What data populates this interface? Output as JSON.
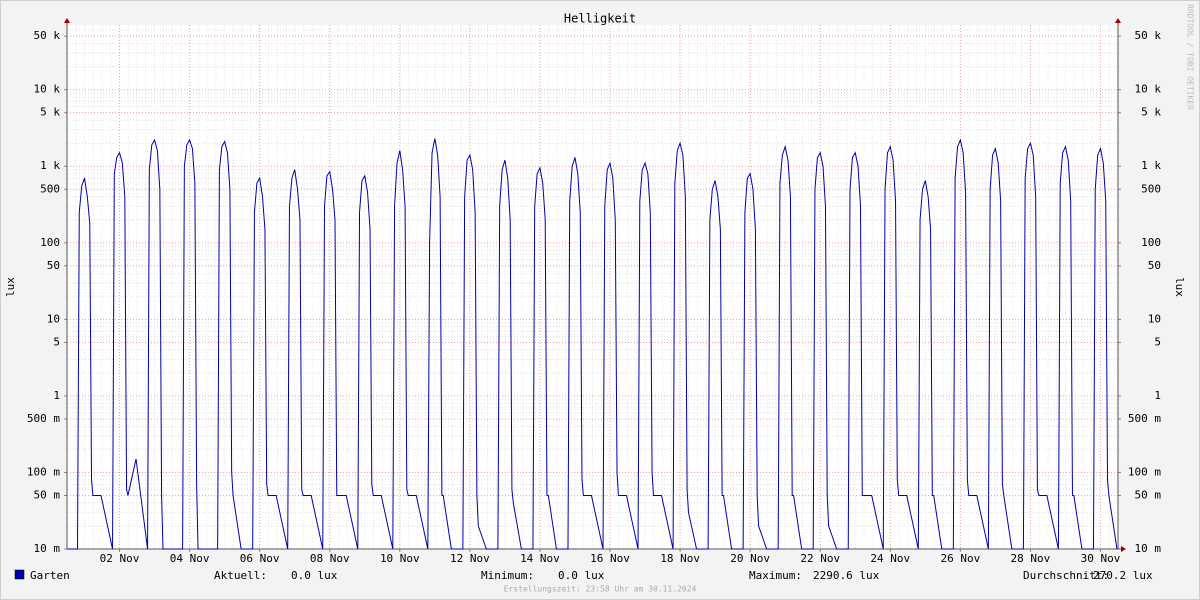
{
  "chart_data": {
    "type": "line",
    "title": "Helligkeit",
    "ylabel": "lux",
    "y2label": "lux",
    "watermark": "RRDTOOL / TOBI OETIKER",
    "footer": "Erstellungszeit: 23:58 Uhr am 30.11.2024",
    "log_scale": true,
    "grid": true,
    "xlim": [
      1,
      31
    ],
    "xticks": [
      {
        "value": 2.5,
        "label": "02 Nov"
      },
      {
        "value": 4.5,
        "label": "04 Nov"
      },
      {
        "value": 6.5,
        "label": "06 Nov"
      },
      {
        "value": 8.5,
        "label": "08 Nov"
      },
      {
        "value": 10.5,
        "label": "10 Nov"
      },
      {
        "value": 12.5,
        "label": "12 Nov"
      },
      {
        "value": 14.5,
        "label": "14 Nov"
      },
      {
        "value": 16.5,
        "label": "16 Nov"
      },
      {
        "value": 18.5,
        "label": "18 Nov"
      },
      {
        "value": 20.5,
        "label": "20 Nov"
      },
      {
        "value": 22.5,
        "label": "22 Nov"
      },
      {
        "value": 24.5,
        "label": "24 Nov"
      },
      {
        "value": 26.5,
        "label": "26 Nov"
      },
      {
        "value": 28.5,
        "label": "28 Nov"
      },
      {
        "value": 30.5,
        "label": "30 Nov"
      }
    ],
    "ylim": [
      0.01,
      70000
    ],
    "yticks": [
      {
        "value": 0.01,
        "label": "10 m"
      },
      {
        "value": 0.05,
        "label": "50 m"
      },
      {
        "value": 0.1,
        "label": "100 m"
      },
      {
        "value": 0.5,
        "label": "500 m"
      },
      1,
      5,
      10,
      50,
      100,
      500,
      {
        "value": 1000,
        "label": "1 k"
      },
      {
        "value": 5000,
        "label": "5 k"
      },
      {
        "value": 10000,
        "label": "10 k"
      },
      {
        "value": 50000,
        "label": "50 k"
      }
    ],
    "x": [
      1,
      1.3,
      1.35,
      1.42,
      1.5,
      1.58,
      1.65,
      1.7,
      1.74,
      1.97,
      2.3,
      2.35,
      2.42,
      2.5,
      2.58,
      2.65,
      2.7,
      2.74,
      2.97,
      3.3,
      3.35,
      3.42,
      3.5,
      3.58,
      3.65,
      3.7,
      3.74,
      3.97,
      4.3,
      4.35,
      4.42,
      4.5,
      4.58,
      4.65,
      4.7,
      4.74,
      4.97,
      5.3,
      5.35,
      5.42,
      5.5,
      5.58,
      5.65,
      5.7,
      5.74,
      5.97,
      6.3,
      6.35,
      6.42,
      6.5,
      6.58,
      6.65,
      6.7,
      6.74,
      6.97,
      7.3,
      7.35,
      7.42,
      7.5,
      7.58,
      7.65,
      7.7,
      7.74,
      7.97,
      8.3,
      8.35,
      8.42,
      8.5,
      8.58,
      8.65,
      8.7,
      8.74,
      8.97,
      9.3,
      9.35,
      9.42,
      9.5,
      9.58,
      9.65,
      9.7,
      9.74,
      9.97,
      10.3,
      10.35,
      10.42,
      10.5,
      10.58,
      10.65,
      10.7,
      10.74,
      10.97,
      11.3,
      11.35,
      11.42,
      11.5,
      11.58,
      11.65,
      11.7,
      11.74,
      11.97,
      12.3,
      12.35,
      12.42,
      12.5,
      12.58,
      12.65,
      12.7,
      12.74,
      12.97,
      13.3,
      13.35,
      13.42,
      13.5,
      13.58,
      13.65,
      13.7,
      13.74,
      13.97,
      14.3,
      14.35,
      14.42,
      14.5,
      14.58,
      14.65,
      14.7,
      14.74,
      14.97,
      15.3,
      15.35,
      15.42,
      15.5,
      15.58,
      15.65,
      15.7,
      15.74,
      15.97,
      16.3,
      16.35,
      16.42,
      16.5,
      16.58,
      16.65,
      16.7,
      16.74,
      16.97,
      17.3,
      17.35,
      17.42,
      17.5,
      17.58,
      17.65,
      17.7,
      17.74,
      17.97,
      18.3,
      18.35,
      18.42,
      18.5,
      18.58,
      18.65,
      18.7,
      18.74,
      18.97,
      19.3,
      19.35,
      19.42,
      19.5,
      19.58,
      19.65,
      19.7,
      19.74,
      19.97,
      20.3,
      20.35,
      20.42,
      20.5,
      20.58,
      20.65,
      20.7,
      20.74,
      20.97,
      21.3,
      21.35,
      21.42,
      21.5,
      21.58,
      21.65,
      21.7,
      21.74,
      21.97,
      22.3,
      22.35,
      22.42,
      22.5,
      22.58,
      22.65,
      22.7,
      22.74,
      22.97,
      23.3,
      23.35,
      23.42,
      23.5,
      23.58,
      23.65,
      23.7,
      23.74,
      23.97,
      24.3,
      24.35,
      24.42,
      24.5,
      24.58,
      24.65,
      24.7,
      24.74,
      24.97,
      25.3,
      25.35,
      25.42,
      25.5,
      25.58,
      25.65,
      25.7,
      25.74,
      25.97,
      26.3,
      26.35,
      26.42,
      26.5,
      26.58,
      26.65,
      26.7,
      26.74,
      26.97,
      27.3,
      27.35,
      27.42,
      27.5,
      27.58,
      27.65,
      27.7,
      27.74,
      27.97,
      28.3,
      28.35,
      28.42,
      28.5,
      28.58,
      28.65,
      28.7,
      28.74,
      28.97,
      29.3,
      29.35,
      29.42,
      29.5,
      29.58,
      29.65,
      29.7,
      29.74,
      29.97,
      30.3,
      30.35,
      30.42,
      30.5,
      30.58,
      30.65,
      30.7,
      30.74,
      30.97
    ],
    "series": [
      {
        "name": "Garten",
        "color": "#0000aa",
        "values": [
          0.01,
          0.01,
          250,
          550,
          700,
          400,
          180,
          0.08,
          0.05,
          0.05,
          0.01,
          800,
          1300,
          1500,
          1100,
          400,
          0.06,
          0.05,
          0.15,
          0.01,
          900,
          1900,
          2200,
          1600,
          500,
          0.05,
          0.01,
          0.01,
          0.01,
          1000,
          1900,
          2200,
          1700,
          600,
          0.07,
          0.01,
          0.01,
          0.01,
          900,
          1800,
          2100,
          1500,
          500,
          0.1,
          0.05,
          0.01,
          0.01,
          250,
          600,
          700,
          400,
          150,
          0.07,
          0.05,
          0.05,
          0.01,
          300,
          700,
          900,
          500,
          200,
          0.06,
          0.05,
          0.05,
          0.01,
          300,
          750,
          850,
          500,
          200,
          0.05,
          0.05,
          0.05,
          0.01,
          250,
          650,
          750,
          450,
          150,
          0.07,
          0.05,
          0.05,
          0.01,
          300,
          1100,
          1600,
          900,
          300,
          0.06,
          0.05,
          0.05,
          0.01,
          100,
          1500,
          2300,
          1400,
          400,
          0.05,
          0.05,
          0.01,
          0.01,
          400,
          1200,
          1400,
          900,
          250,
          0.05,
          0.02,
          0.01,
          0.01,
          300,
          900,
          1200,
          700,
          200,
          0.06,
          0.04,
          0.01,
          0.01,
          300,
          800,
          950,
          600,
          200,
          0.05,
          0.05,
          0.01,
          0.01,
          350,
          1000,
          1300,
          800,
          250,
          0.08,
          0.05,
          0.05,
          0.01,
          300,
          900,
          1100,
          700,
          200,
          0.1,
          0.05,
          0.05,
          0.01,
          350,
          900,
          1100,
          800,
          250,
          0.1,
          0.05,
          0.05,
          0.01,
          600,
          1600,
          2000,
          1400,
          400,
          0.06,
          0.03,
          0.01,
          0.01,
          200,
          500,
          650,
          400,
          150,
          0.05,
          0.05,
          0.01,
          0.01,
          250,
          700,
          800,
          500,
          150,
          0.05,
          0.02,
          0.01,
          0.01,
          600,
          1400,
          1800,
          1200,
          400,
          0.05,
          0.05,
          0.01,
          0.01,
          500,
          1300,
          1500,
          1000,
          300,
          0.05,
          0.02,
          0.01,
          0.01,
          500,
          1300,
          1500,
          1000,
          300,
          0.05,
          0.05,
          0.05,
          0.01,
          500,
          1500,
          1800,
          1200,
          350,
          0.08,
          0.05,
          0.05,
          0.01,
          200,
          500,
          650,
          400,
          150,
          0.05,
          0.05,
          0.01,
          0.01,
          700,
          1800,
          2200,
          1500,
          450,
          0.08,
          0.05,
          0.05,
          0.01,
          500,
          1400,
          1700,
          1100,
          350,
          0.07,
          0.05,
          0.01,
          0.01,
          700,
          1700,
          2000,
          1400,
          400,
          0.06,
          0.05,
          0.05,
          0.01,
          600,
          1500,
          1800,
          1200,
          350,
          0.05,
          0.05,
          0.01,
          0.01,
          500,
          1400,
          1700,
          1100,
          350,
          0.08,
          0.05,
          0.01
        ]
      }
    ],
    "stats": [
      {
        "label": "Aktuell:",
        "value": "0.0 lux"
      },
      {
        "label": "Minimum:",
        "value": "0.0 lux"
      },
      {
        "label": "Maximum:",
        "value": "2290.6 lux"
      },
      {
        "label": "Durchschnitt:",
        "value": "270.2 lux"
      }
    ]
  }
}
